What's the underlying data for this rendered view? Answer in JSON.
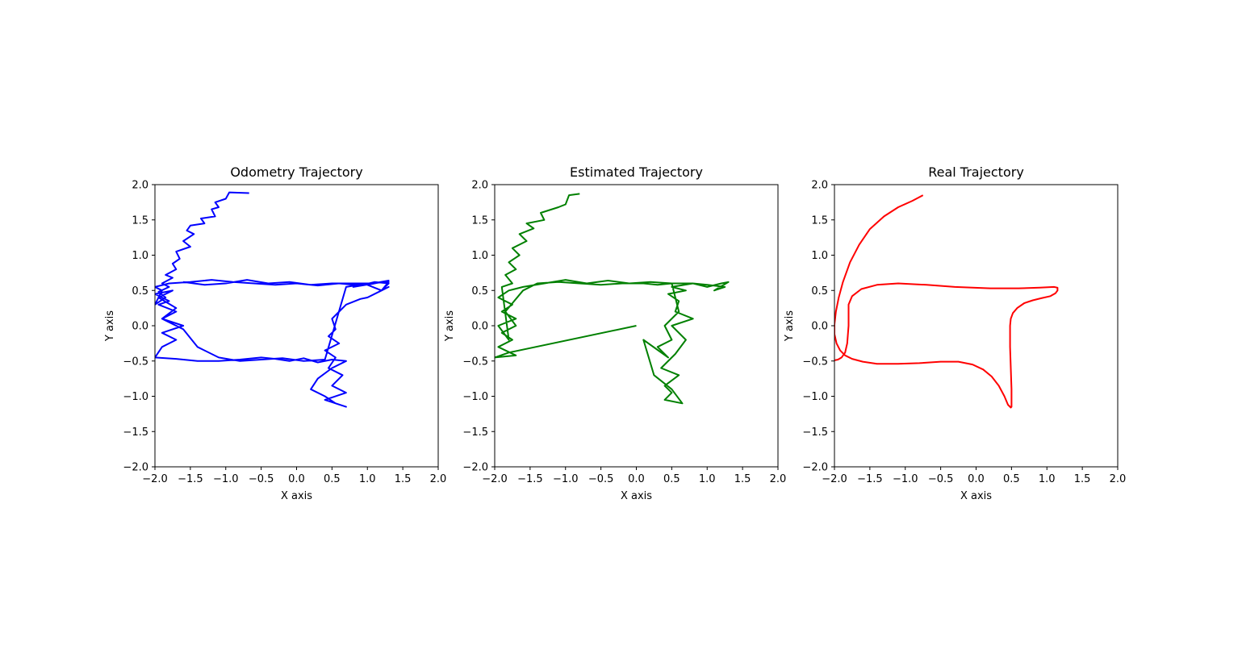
{
  "chart_data": [
    {
      "type": "line",
      "title": "Odometry Trajectory",
      "xlabel": "X axis",
      "ylabel": "Y axis",
      "xlim": [
        -2.0,
        2.0
      ],
      "ylim": [
        -2.0,
        2.0
      ],
      "xticks": [
        "−2.0",
        "−1.5",
        "−1.0",
        "−0.5",
        "0.0",
        "0.5",
        "1.0",
        "1.5",
        "2.0"
      ],
      "yticks": [
        "−2.0",
        "−1.5",
        "−1.0",
        "−0.5",
        "0.0",
        "0.5",
        "1.0",
        "1.5",
        "2.0"
      ],
      "grid": false,
      "series": [
        {
          "color": "#0000ff",
          "x": [
            -0.67,
            -0.95,
            -1.0,
            -1.15,
            -1.1,
            -1.2,
            -1.15,
            -1.35,
            -1.3,
            -1.5,
            -1.55,
            -1.45,
            -1.6,
            -1.5,
            -1.7,
            -1.65,
            -1.75,
            -1.7,
            -1.85,
            -1.75,
            -1.9,
            -1.8,
            -1.95,
            -1.85,
            -2.0,
            -1.9,
            -2.0,
            -1.8,
            -1.5,
            -1.2,
            -0.9,
            -0.6,
            -0.3,
            0.0,
            0.3,
            0.6,
            0.9,
            1.1,
            1.3,
            1.2,
            1.3,
            1.1,
            1.2,
            1.0,
            0.9,
            0.7,
            0.6,
            0.5,
            0.55,
            0.45,
            0.6,
            0.4,
            0.55,
            0.45,
            0.65,
            0.5,
            0.7,
            0.4,
            0.7,
            0.55,
            0.4,
            0.2,
            0.3,
            0.5,
            0.7,
            0.5,
            0.3,
            0.1,
            -0.1,
            -0.3,
            -0.5,
            -0.8,
            -1.1,
            -1.4,
            -1.7,
            -2.0,
            -1.9,
            -1.7,
            -1.9,
            -1.6,
            -1.9,
            -1.7,
            -1.95,
            -1.8,
            -2.0,
            -1.75,
            -1.95,
            -1.7,
            -1.9,
            -1.6,
            -1.4,
            -1.1,
            -0.8,
            -0.5,
            -0.2,
            0.1,
            0.4,
            0.7,
            1.0,
            1.3,
            1.2,
            1.0,
            1.3,
            0.8,
            1.1,
            0.5,
            0.2,
            -0.1,
            -0.4,
            -0.7,
            -1.0,
            -1.3,
            -1.6
          ],
          "y": [
            1.88,
            1.89,
            1.8,
            1.75,
            1.68,
            1.65,
            1.55,
            1.52,
            1.45,
            1.42,
            1.35,
            1.3,
            1.2,
            1.12,
            1.05,
            0.95,
            0.88,
            0.8,
            0.72,
            0.68,
            0.6,
            0.55,
            0.48,
            0.4,
            0.3,
            0.5,
            0.55,
            0.6,
            0.62,
            0.65,
            0.62,
            0.6,
            0.58,
            0.6,
            0.57,
            0.6,
            0.57,
            0.62,
            0.6,
            0.5,
            0.55,
            0.45,
            0.5,
            0.4,
            0.38,
            0.3,
            0.2,
            0.1,
            -0.05,
            -0.15,
            -0.25,
            -0.35,
            -0.45,
            -0.6,
            -0.7,
            -0.85,
            -0.95,
            -1.05,
            -1.15,
            -1.1,
            -1.0,
            -0.9,
            -0.75,
            -0.6,
            -0.5,
            -0.48,
            -0.52,
            -0.46,
            -0.5,
            -0.47,
            -0.45,
            -0.48,
            -0.5,
            -0.5,
            -0.47,
            -0.45,
            -0.3,
            -0.2,
            -0.1,
            0.0,
            0.1,
            0.2,
            0.3,
            0.35,
            0.45,
            0.5,
            0.4,
            0.25,
            0.1,
            -0.05,
            -0.3,
            -0.45,
            -0.5,
            -0.48,
            -0.46,
            -0.5,
            -0.48,
            0.55,
            0.6,
            0.62,
            0.5,
            0.58,
            0.64,
            0.55,
            0.6,
            0.6,
            0.58,
            0.62,
            0.6,
            0.65,
            0.6,
            0.58,
            0.62
          ]
        }
      ]
    },
    {
      "type": "line",
      "title": "Estimated Trajectory",
      "xlabel": "X axis",
      "ylabel": "Y axis",
      "xlim": [
        -2.0,
        2.0
      ],
      "ylim": [
        -2.0,
        2.0
      ],
      "xticks": [
        "−2.0",
        "−1.5",
        "−1.0",
        "−0.5",
        "0.0",
        "0.5",
        "1.0",
        "1.5",
        "2.0"
      ],
      "yticks": [
        "−2.0",
        "−1.5",
        "−1.0",
        "−0.5",
        "0.0",
        "0.5",
        "1.0",
        "1.5",
        "2.0"
      ],
      "grid": false,
      "series": [
        {
          "color": "#008000",
          "x": [
            0.0,
            -1.8,
            -2.0,
            -1.7,
            -1.95,
            -1.75,
            -1.9,
            -1.7,
            -1.85,
            -1.6,
            -1.4,
            -1.1,
            -0.8,
            -0.5,
            -0.2,
            0.1,
            0.3,
            0.5,
            0.6,
            0.4,
            0.5,
            0.3,
            0.45,
            0.1,
            0.25,
            0.5,
            0.65,
            0.4,
            0.5,
            0.4,
            0.6,
            0.35,
            0.55,
            0.7,
            0.5,
            0.8,
            0.55,
            0.6,
            0.45,
            0.7,
            0.5,
            0.8,
            1.0,
            1.2,
            1.3,
            1.1,
            1.25,
            1.0,
            0.8,
            0.5,
            0.2,
            -0.1,
            -0.4,
            -0.7,
            -1.0,
            -1.3,
            -1.6,
            -1.8,
            -1.95,
            -1.75,
            -1.9,
            -1.7,
            -1.95,
            -1.8,
            -1.9,
            -1.75,
            -1.85,
            -1.7,
            -1.8,
            -1.65,
            -1.75,
            -1.55,
            -1.65,
            -1.45,
            -1.55,
            -1.3,
            -1.35,
            -1.1,
            -1.0,
            -0.95,
            -0.8
          ],
          "y": [
            0.0,
            -0.38,
            -0.45,
            -0.42,
            -0.3,
            -0.2,
            -0.1,
            0.0,
            0.2,
            0.5,
            0.6,
            0.62,
            0.6,
            0.58,
            0.6,
            0.6,
            0.58,
            0.6,
            0.2,
            0.0,
            -0.2,
            -0.3,
            -0.45,
            -0.2,
            -0.7,
            -0.9,
            -1.1,
            -1.05,
            -0.95,
            -0.85,
            -0.7,
            -0.6,
            -0.4,
            -0.2,
            0.0,
            0.1,
            0.2,
            0.35,
            0.45,
            0.5,
            0.55,
            0.6,
            0.55,
            0.6,
            0.62,
            0.5,
            0.55,
            0.58,
            0.6,
            0.6,
            0.62,
            0.6,
            0.64,
            0.6,
            0.65,
            0.6,
            0.55,
            0.5,
            0.4,
            0.3,
            0.2,
            0.1,
            0.0,
            -0.2,
            0.55,
            0.6,
            0.72,
            0.8,
            0.9,
            1.0,
            1.1,
            1.2,
            1.3,
            1.38,
            1.45,
            1.5,
            1.6,
            1.68,
            1.72,
            1.85,
            1.87
          ]
        }
      ]
    },
    {
      "type": "line",
      "title": "Real Trajectory",
      "xlabel": "X axis",
      "ylabel": "Y axis",
      "xlim": [
        -2.0,
        2.0
      ],
      "ylim": [
        -2.0,
        2.0
      ],
      "xticks": [
        "−2.0",
        "−1.5",
        "−1.0",
        "−0.5",
        "0.0",
        "0.5",
        "1.0",
        "1.5",
        "2.0"
      ],
      "yticks": [
        "−2.0",
        "−1.5",
        "−1.0",
        "−0.5",
        "0.0",
        "0.5",
        "1.0",
        "1.5",
        "2.0"
      ],
      "grid": false,
      "series": [
        {
          "color": "#ff0000",
          "x": [
            -0.75,
            -0.9,
            -1.1,
            -1.3,
            -1.5,
            -1.65,
            -1.78,
            -1.88,
            -1.94,
            -1.98,
            -2.0,
            -2.0,
            -1.97,
            -1.92,
            -1.85,
            -1.75,
            -1.6,
            -1.4,
            -1.1,
            -0.8,
            -0.5,
            -0.25,
            -0.05,
            0.1,
            0.22,
            0.32,
            0.4,
            0.45,
            0.49,
            0.5,
            0.5,
            0.49,
            0.48,
            0.48,
            0.49,
            0.52,
            0.58,
            0.68,
            0.8,
            0.92,
            1.05,
            1.12,
            1.15,
            1.15,
            1.1,
            0.9,
            0.6,
            0.2,
            -0.3,
            -0.7,
            -1.1,
            -1.4,
            -1.62,
            -1.75,
            -1.8,
            -1.8,
            -1.82,
            -1.85,
            -1.9,
            -1.95,
            -2.0
          ],
          "y": [
            1.85,
            1.77,
            1.68,
            1.55,
            1.37,
            1.15,
            0.9,
            0.62,
            0.4,
            0.2,
            0.02,
            -0.12,
            -0.25,
            -0.35,
            -0.42,
            -0.47,
            -0.51,
            -0.54,
            -0.54,
            -0.53,
            -0.51,
            -0.51,
            -0.55,
            -0.62,
            -0.72,
            -0.85,
            -1.0,
            -1.12,
            -1.16,
            -1.15,
            -0.9,
            -0.6,
            -0.3,
            0.0,
            0.1,
            0.18,
            0.25,
            0.32,
            0.36,
            0.39,
            0.42,
            0.46,
            0.5,
            0.54,
            0.55,
            0.54,
            0.53,
            0.53,
            0.55,
            0.58,
            0.6,
            0.58,
            0.52,
            0.42,
            0.3,
            0.0,
            -0.25,
            -0.38,
            -0.45,
            -0.48,
            -0.49
          ]
        }
      ]
    }
  ]
}
